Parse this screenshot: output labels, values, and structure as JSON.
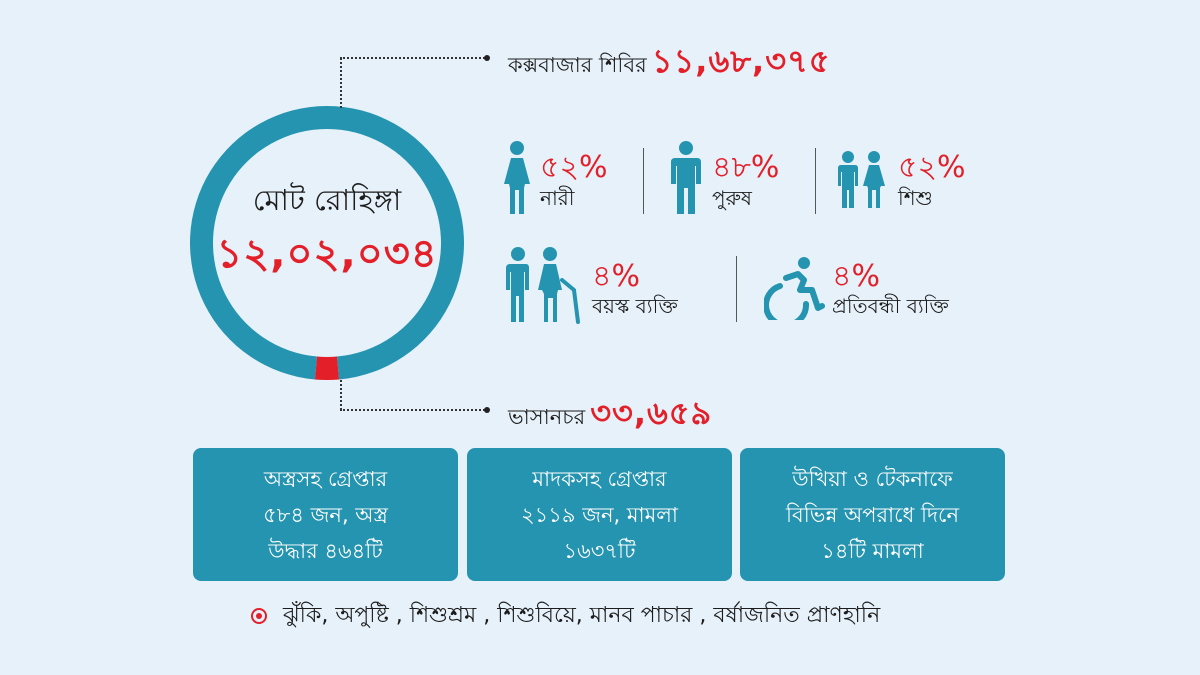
{
  "colors": {
    "background": "#e6f1f9",
    "accent_teal": "#2594b0",
    "highlight_red": "#e3202a",
    "text_dark": "#1c1c1c"
  },
  "chart_data": {
    "type": "pie",
    "title": "মোট রোহিঙ্গা",
    "total_label": "১২,০২,০৩৪",
    "total": 1202034,
    "slices": [
      {
        "label": "কক্সবাজার শিবির",
        "value": 1168375,
        "display": "১১,৬৮,৩৭৫",
        "color": "#2594b0"
      },
      {
        "label": "ভাসানচর",
        "value": 33659,
        "display": "৩৩,৬৫৯",
        "color": "#e3202a"
      }
    ]
  },
  "demographics": [
    {
      "icon": "woman-icon",
      "percent": "৫২%",
      "label": "নারী",
      "value": 52
    },
    {
      "icon": "man-icon",
      "percent": "৪৮%",
      "label": "পুরুষ",
      "value": 48
    },
    {
      "icon": "children-icon",
      "percent": "৫২%",
      "label": "শিশু",
      "value": 52
    },
    {
      "icon": "elderly-couple-icon",
      "percent": "৪%",
      "label": "বয়স্ক ব্যক্তি",
      "value": 4
    },
    {
      "icon": "wheelchair-icon",
      "percent": "৪%",
      "label": "প্রতিবন্ধী ব্যক্তি",
      "value": 4
    }
  ],
  "cards": [
    {
      "lines": [
        "অস্ত্রসহ গ্রেপ্তার",
        "৫৮৪ জন, অস্ত্র",
        "উদ্ধার ৪৬৪টি"
      ]
    },
    {
      "lines": [
        "মাদকসহ গ্রেপ্তার",
        "২১১৯ জন, মামলা",
        "১৬৩৭টি"
      ]
    },
    {
      "lines": [
        "উখিয়া ও টেকনাফে",
        "বিভিন্ন অপরাধে দিনে",
        "১৪টি মামলা"
      ]
    }
  ],
  "footer": {
    "bullet_icon": "red-target-dot-icon",
    "text": "ঝুঁকি, অপুষ্টি , শিশুশ্রম , শিশুবিয়ে, মানব পাচার , বর্ষাজনিত প্রাণহানি"
  }
}
